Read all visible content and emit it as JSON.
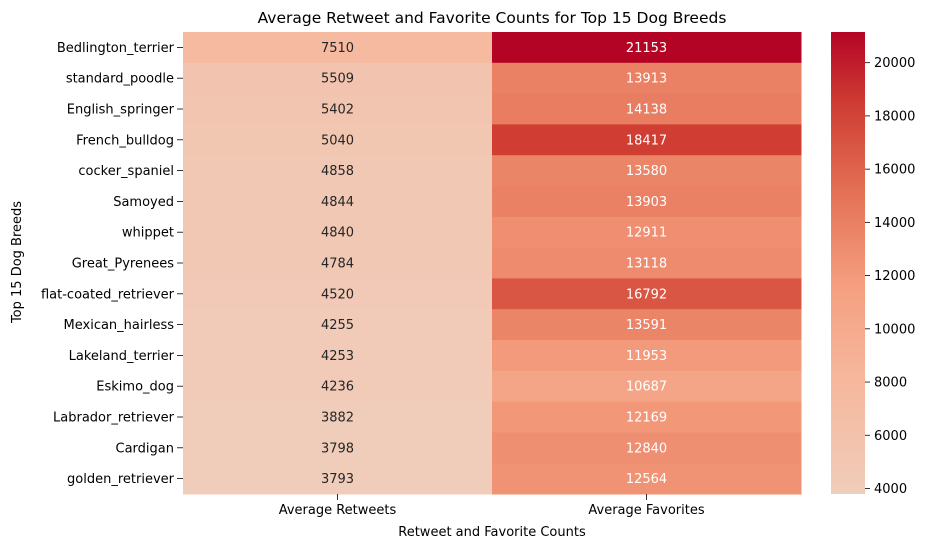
{
  "chart_data": {
    "type": "heatmap",
    "title": "Average Retweet and Favorite Counts for Top 15 Dog Breeds",
    "xlabel": "Retweet and Favorite Counts",
    "ylabel": "Top 15 Dog Breeds",
    "columns": [
      "Average Retweets",
      "Average Favorites"
    ],
    "rows": [
      "Bedlington_terrier",
      "standard_poodle",
      "English_springer",
      "French_bulldog",
      "cocker_spaniel",
      "Samoyed",
      "whippet",
      "Great_Pyrenees",
      "flat-coated_retriever",
      "Mexican_hairless",
      "Lakeland_terrier",
      "Eskimo_dog",
      "Labrador_retriever",
      "Cardigan",
      "golden_retriever"
    ],
    "values": [
      [
        7510,
        21153
      ],
      [
        5509,
        13913
      ],
      [
        5402,
        14138
      ],
      [
        5040,
        18417
      ],
      [
        4858,
        13580
      ],
      [
        4844,
        13903
      ],
      [
        4840,
        12911
      ],
      [
        4784,
        13118
      ],
      [
        4520,
        16792
      ],
      [
        4255,
        13591
      ],
      [
        4253,
        11953
      ],
      [
        4236,
        10687
      ],
      [
        3882,
        12169
      ],
      [
        3798,
        12840
      ],
      [
        3793,
        12564
      ]
    ],
    "colorbar": {
      "colormap": "coolwarm (upper half)",
      "vmin": 3793,
      "vmax": 21153,
      "ticks": [
        4000,
        6000,
        8000,
        10000,
        12000,
        14000,
        16000,
        18000,
        20000
      ],
      "tick_labels": [
        "4000",
        "6000",
        "8000",
        "10000",
        "12000",
        "14000",
        "16000",
        "18000",
        "20000"
      ]
    },
    "colors": {
      "low": "#f0cdbb",
      "mid": "#f4a384",
      "mid_high": "#e9785d",
      "high": "#cf3a32",
      "max": "#b40426",
      "text_dark": "#262626",
      "text_light": "#ffffff"
    },
    "grid": false
  }
}
